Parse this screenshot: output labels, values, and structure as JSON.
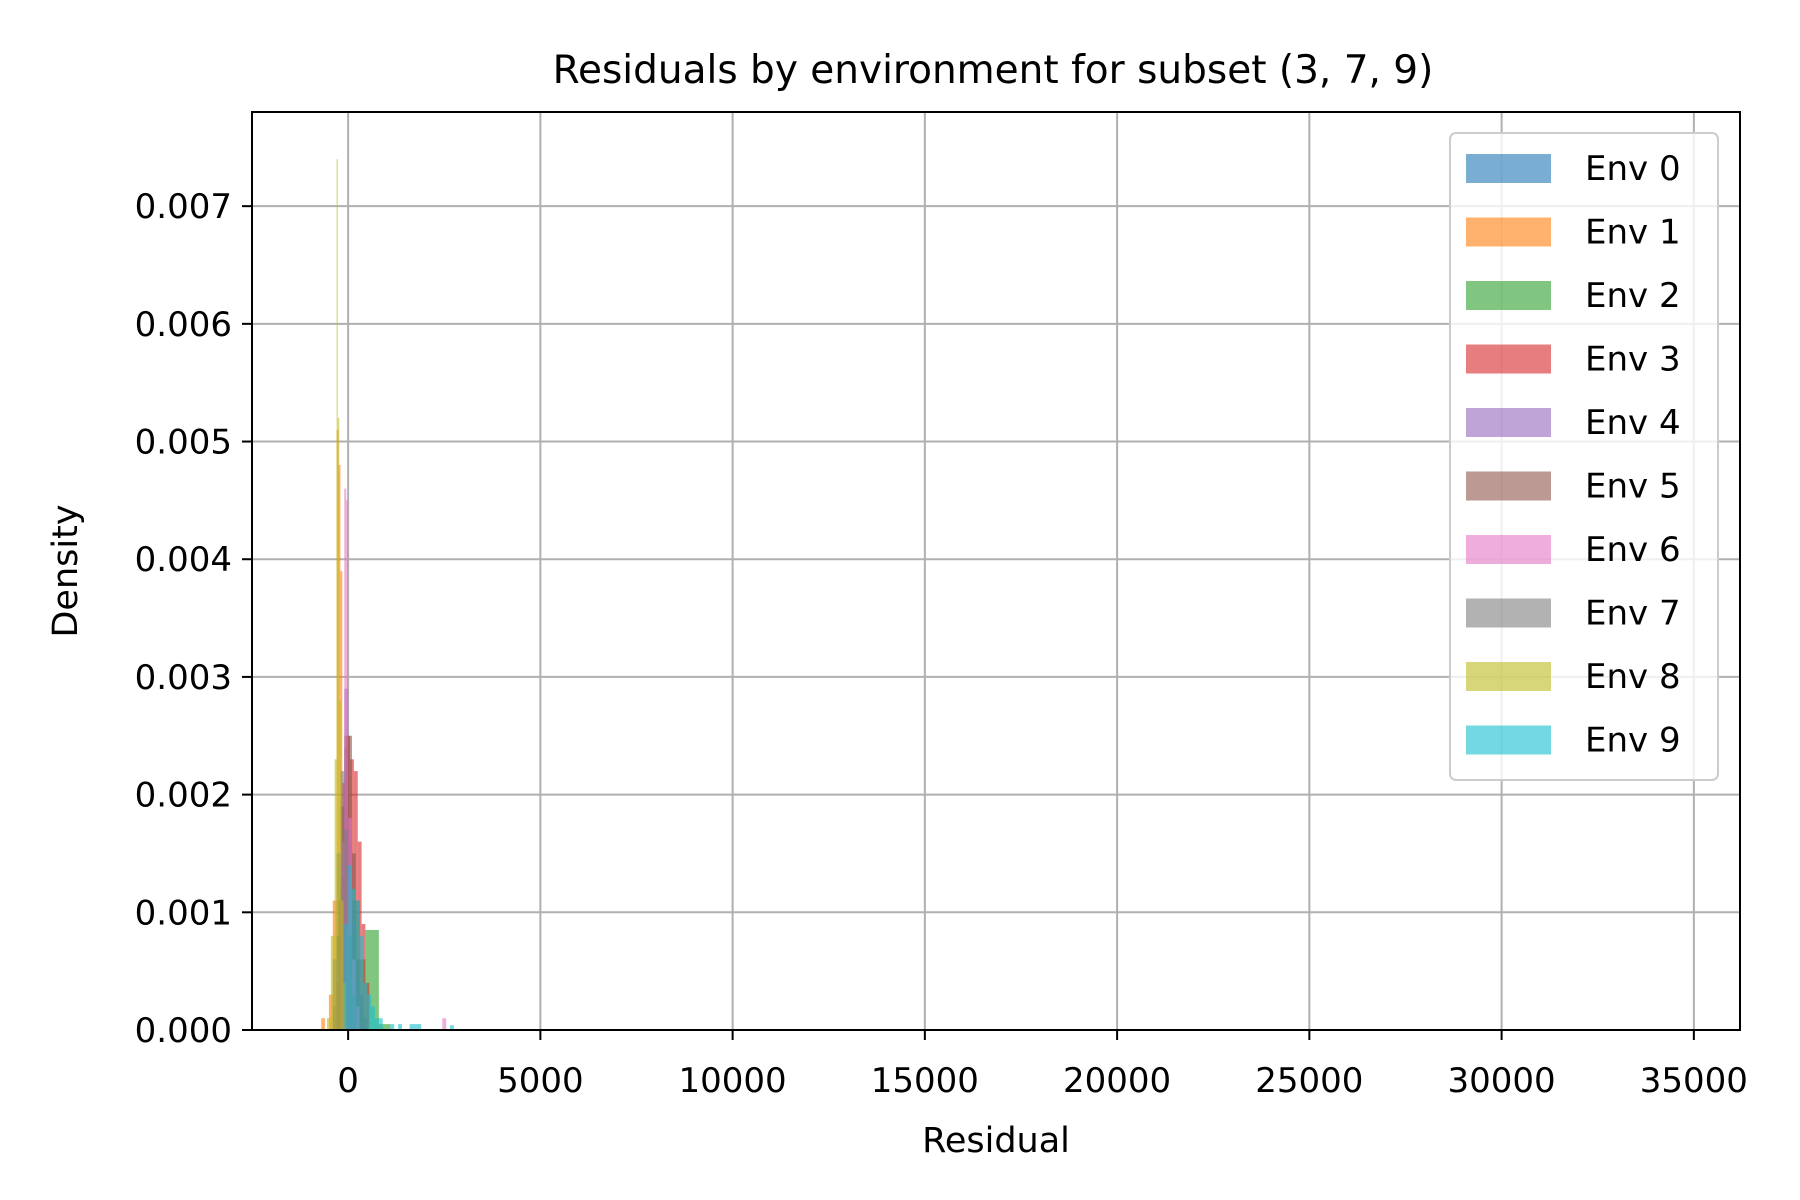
{
  "chart_data": {
    "type": "histogram",
    "title": "Residuals by environment for subset (3, 7, 9)",
    "xlabel": "Residual",
    "ylabel": "Density",
    "xlim": [
      -2500,
      36200
    ],
    "ylim": [
      0,
      0.0078
    ],
    "xticks": [
      0,
      5000,
      10000,
      15000,
      20000,
      25000,
      30000,
      35000
    ],
    "xtick_labels": [
      "0",
      "5000",
      "10000",
      "15000",
      "20000",
      "25000",
      "30000",
      "35000"
    ],
    "yticks": [
      0.0,
      0.001,
      0.002,
      0.003,
      0.004,
      0.005,
      0.006,
      0.007
    ],
    "ytick_labels": [
      "0.000",
      "0.001",
      "0.002",
      "0.003",
      "0.004",
      "0.005",
      "0.006",
      "0.007"
    ],
    "grid": true,
    "legend_position": "top-right",
    "bar_opacity": 0.6,
    "series": [
      {
        "name": "Env 0",
        "color": "#1f77b4",
        "bins": [
          [
            -400,
            -300,
            0.0002
          ],
          [
            -300,
            -200,
            0.0008
          ],
          [
            -200,
            -100,
            0.0019
          ],
          [
            -100,
            0,
            0.0024
          ],
          [
            0,
            100,
            0.0016
          ],
          [
            100,
            200,
            0.0011
          ],
          [
            200,
            300,
            0.0006
          ],
          [
            300,
            400,
            0.0003
          ],
          [
            400,
            500,
            0.0001
          ]
        ]
      },
      {
        "name": "Env 1",
        "color": "#ff7f0e",
        "bins": [
          [
            -700,
            -600,
            0.0001
          ],
          [
            -500,
            -400,
            0.0003
          ],
          [
            -400,
            -300,
            0.0011
          ],
          [
            -300,
            -250,
            0.0051
          ],
          [
            -250,
            -200,
            0.0048
          ],
          [
            -200,
            -150,
            0.0039
          ],
          [
            -150,
            -100,
            0.0019
          ],
          [
            -100,
            -50,
            0.0009
          ],
          [
            -50,
            0,
            0.0004
          ],
          [
            0,
            100,
            0.0002
          ]
        ]
      },
      {
        "name": "Env 2",
        "color": "#2ca02c",
        "bins": [
          [
            -300,
            -150,
            0.0008
          ],
          [
            -150,
            0,
            0.0012
          ],
          [
            0,
            150,
            0.0009
          ],
          [
            150,
            300,
            0.0011
          ],
          [
            300,
            450,
            0.0006
          ],
          [
            450,
            800,
            0.00085
          ],
          [
            800,
            1100,
            5e-05
          ]
        ]
      },
      {
        "name": "Env 3",
        "color": "#d62728",
        "bins": [
          [
            -250,
            -150,
            0.0011
          ],
          [
            -150,
            -50,
            0.0021
          ],
          [
            -50,
            50,
            0.0025
          ],
          [
            50,
            150,
            0.0023
          ],
          [
            150,
            250,
            0.0022
          ],
          [
            250,
            350,
            0.0016
          ],
          [
            350,
            450,
            0.0009
          ],
          [
            450,
            550,
            0.0004
          ]
        ]
      },
      {
        "name": "Env 4",
        "color": "#9467bd",
        "bins": [
          [
            -300,
            -200,
            0.0006
          ],
          [
            -200,
            -100,
            0.0014
          ],
          [
            -100,
            0,
            0.0029
          ],
          [
            0,
            100,
            0.0017
          ],
          [
            100,
            200,
            0.0009
          ],
          [
            200,
            300,
            0.0004
          ]
        ]
      },
      {
        "name": "Env 5",
        "color": "#8c564b",
        "bins": [
          [
            -300,
            -200,
            0.0004
          ],
          [
            -200,
            -100,
            0.0013
          ],
          [
            -100,
            0,
            0.0025
          ],
          [
            0,
            100,
            0.0025
          ],
          [
            100,
            200,
            0.0015
          ],
          [
            200,
            300,
            0.0006
          ],
          [
            300,
            400,
            0.0002
          ]
        ]
      },
      {
        "name": "Env 6",
        "color": "#e377c2",
        "bins": [
          [
            -200,
            -100,
            0.0016
          ],
          [
            -100,
            -50,
            0.0046
          ],
          [
            -50,
            0,
            0.0045
          ],
          [
            0,
            100,
            0.0018
          ],
          [
            100,
            200,
            0.0006
          ],
          [
            200,
            300,
            0.0002
          ],
          [
            2450,
            2550,
            0.0001
          ]
        ]
      },
      {
        "name": "Env 7",
        "color": "#7f7f7f",
        "bins": [
          [
            -400,
            -300,
            0.0006
          ],
          [
            -300,
            -200,
            0.0015
          ],
          [
            -200,
            -100,
            0.0022
          ],
          [
            -100,
            0,
            0.0017
          ],
          [
            0,
            100,
            0.0008
          ],
          [
            100,
            200,
            0.0003
          ]
        ]
      },
      {
        "name": "Env 8",
        "color": "#bcbd22",
        "bins": [
          [
            -550,
            -450,
            0.0001
          ],
          [
            -450,
            -350,
            0.0008
          ],
          [
            -350,
            -300,
            0.0023
          ],
          [
            -300,
            -270,
            0.0074
          ],
          [
            -270,
            -230,
            0.0052
          ],
          [
            -230,
            -180,
            0.0028
          ],
          [
            -180,
            -120,
            0.0011
          ],
          [
            -120,
            -50,
            0.0004
          ]
        ]
      },
      {
        "name": "Env 9",
        "color": "#17becf",
        "bins": [
          [
            -100,
            0,
            0.0009
          ],
          [
            0,
            100,
            0.0014
          ],
          [
            100,
            200,
            0.0012
          ],
          [
            200,
            300,
            0.0011
          ],
          [
            300,
            400,
            0.0008
          ],
          [
            400,
            500,
            0.0004
          ],
          [
            500,
            600,
            0.0003
          ],
          [
            600,
            700,
            0.0002
          ],
          [
            700,
            800,
            0.0001
          ],
          [
            800,
            900,
            0.0001
          ],
          [
            1100,
            1200,
            5e-05
          ],
          [
            1300,
            1400,
            5e-05
          ],
          [
            1600,
            1900,
            5e-05
          ],
          [
            2650,
            2750,
            4e-05
          ]
        ]
      }
    ]
  }
}
